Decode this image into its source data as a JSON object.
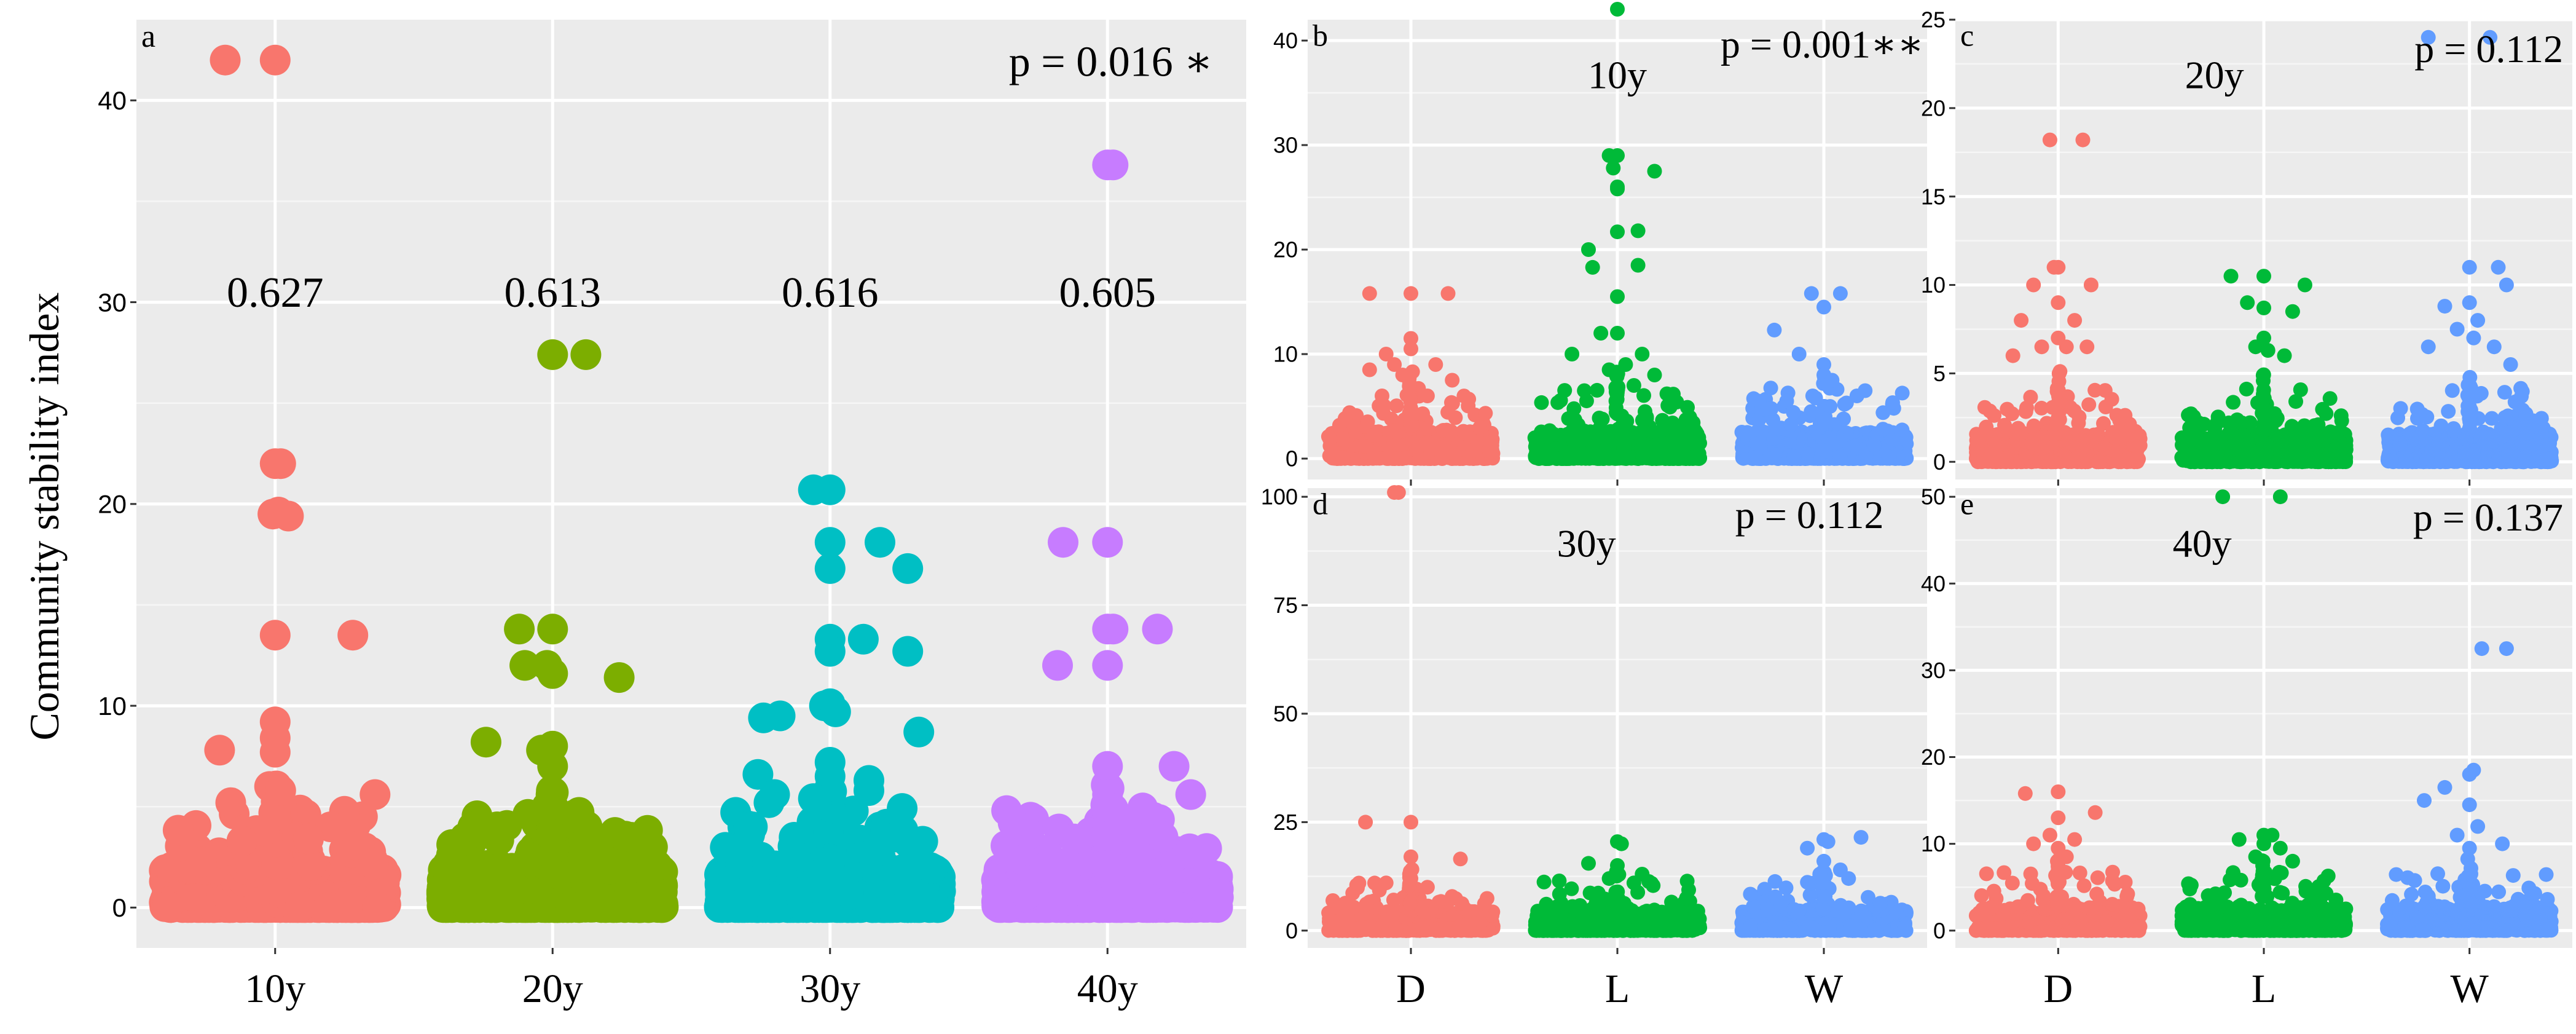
{
  "figure": {
    "ylabel": "Community stability index"
  },
  "chart_data": [
    {
      "id": "a",
      "type": "scatter",
      "title": "",
      "panel_label": "a",
      "p_text": "p = 0.016 ∗",
      "xlabel": "",
      "ylabel": "Community stability index",
      "categories": [
        "10y",
        "20y",
        "30y",
        "40y"
      ],
      "ylim": [
        -2,
        44
      ],
      "yticks": [
        0,
        10,
        20,
        30,
        40
      ],
      "grid": true,
      "colors": [
        "#F8766D",
        "#7CAE00",
        "#00BFC4",
        "#C77CFF"
      ],
      "annotations": [
        "0.627",
        "0.613",
        "0.616",
        "0.605"
      ],
      "annotation_y": 30.5,
      "outliers": [
        [
          [
            -0.45,
            42
          ],
          [
            0,
            42
          ],
          [
            0,
            22
          ],
          [
            0.05,
            22
          ],
          [
            -0.02,
            19.5
          ],
          [
            0.03,
            19.6
          ],
          [
            0.12,
            19.4
          ],
          [
            0.7,
            13.5
          ],
          [
            0,
            13.5
          ],
          [
            0,
            9.2
          ],
          [
            0,
            8.4
          ],
          [
            -0.5,
            7.8
          ],
          [
            0,
            7.7
          ],
          [
            -0.05,
            6
          ],
          [
            0.05,
            5.8
          ],
          [
            -0.4,
            5.2
          ],
          [
            0.9,
            5.6
          ],
          [
            0.5,
            4
          ],
          [
            -0.1,
            3.8
          ],
          [
            0.2,
            3.5
          ],
          [
            0.3,
            3.4
          ],
          [
            -0.3,
            3.3
          ]
        ],
        [
          [
            0,
            27.4
          ],
          [
            0.3,
            27.4
          ],
          [
            -0.3,
            13.8
          ],
          [
            0,
            13.8
          ],
          [
            -0.25,
            12
          ],
          [
            -0.05,
            12
          ],
          [
            0,
            11.6
          ],
          [
            0.6,
            11.4
          ],
          [
            -0.6,
            8.2
          ],
          [
            0,
            8
          ],
          [
            -0.1,
            7.8
          ],
          [
            0,
            7
          ],
          [
            -0.05,
            5
          ],
          [
            0.2,
            4.6
          ],
          [
            0.25,
            4.4
          ],
          [
            -0.7,
            4
          ],
          [
            -0.5,
            4
          ],
          [
            0.9,
            3
          ],
          [
            0.4,
            2.6
          ]
        ],
        [
          [
            0,
            20.7
          ],
          [
            -0.15,
            20.7
          ],
          [
            0,
            18.1
          ],
          [
            0.45,
            18.1
          ],
          [
            0,
            16.8
          ],
          [
            0.7,
            16.8
          ],
          [
            0,
            13.3
          ],
          [
            0.3,
            13.3
          ],
          [
            0,
            12.7
          ],
          [
            0.7,
            12.7
          ],
          [
            0,
            10.1
          ],
          [
            -0.05,
            10
          ],
          [
            0.05,
            9.7
          ],
          [
            -0.45,
            9.5
          ],
          [
            -0.6,
            9.4
          ],
          [
            0,
            7.2
          ],
          [
            0,
            6.5
          ],
          [
            0.8,
            8.7
          ],
          [
            -0.65,
            6.6
          ],
          [
            0.35,
            6.3
          ],
          [
            0.35,
            5.8
          ],
          [
            -0.5,
            5.6
          ],
          [
            -0.55,
            5.2
          ],
          [
            -0.15,
            5.4
          ],
          [
            -0.12,
            5.2
          ],
          [
            -0.7,
            4
          ],
          [
            0.5,
            3.8
          ],
          [
            0.6,
            3.5
          ]
        ],
        [
          [
            0,
            36.8
          ],
          [
            0.05,
            36.8
          ],
          [
            -0.4,
            18.1
          ],
          [
            0,
            18.1
          ],
          [
            0,
            13.8
          ],
          [
            0.05,
            13.8
          ],
          [
            0.45,
            13.8
          ],
          [
            -0.45,
            12
          ],
          [
            0,
            12
          ],
          [
            0,
            7
          ],
          [
            0.6,
            7
          ],
          [
            0,
            5.6
          ],
          [
            0.75,
            5.6
          ],
          [
            0,
            5
          ],
          [
            0.05,
            4.9
          ],
          [
            -0.85,
            4.2
          ],
          [
            -0.3,
            3.4
          ],
          [
            0.5,
            3.5
          ]
        ]
      ]
    },
    {
      "id": "b",
      "type": "scatter",
      "title": "10y",
      "panel_label": "b",
      "p_text": "p = 0.001∗∗",
      "categories": [
        "D",
        "L",
        "W"
      ],
      "ylim": [
        -2,
        42
      ],
      "yticks": [
        0,
        10,
        20,
        30,
        40
      ],
      "grid": true,
      "colors": [
        "#F8766D",
        "#00BA38",
        "#619CFF"
      ],
      "outliers": [
        [
          [
            -0.5,
            15.8
          ],
          [
            0,
            15.8
          ],
          [
            0.45,
            15.8
          ],
          [
            0,
            11.5
          ],
          [
            0,
            10.5
          ],
          [
            -0.3,
            10
          ],
          [
            -0.2,
            9
          ],
          [
            -0.5,
            8.5
          ],
          [
            -0.1,
            8
          ],
          [
            0.3,
            9
          ],
          [
            0.5,
            7.5
          ],
          [
            0.2,
            6
          ],
          [
            -0.35,
            6
          ]
        ],
        [
          [
            0,
            43
          ],
          [
            -0.1,
            29
          ],
          [
            0,
            29
          ],
          [
            0.45,
            27.5
          ],
          [
            -0.05,
            27.8
          ],
          [
            0,
            26
          ],
          [
            0,
            25.8
          ],
          [
            0.25,
            21.8
          ],
          [
            0,
            21.7
          ],
          [
            -0.35,
            20
          ],
          [
            0.25,
            18.5
          ],
          [
            -0.3,
            18.3
          ],
          [
            0,
            15.5
          ],
          [
            -0.2,
            12
          ],
          [
            0,
            12
          ],
          [
            0.3,
            10
          ],
          [
            -0.55,
            10
          ],
          [
            0.1,
            9
          ],
          [
            -0.1,
            8.5
          ],
          [
            0.45,
            8
          ],
          [
            0.2,
            7
          ],
          [
            -0.4,
            6.5
          ],
          [
            0.6,
            6.2
          ]
        ],
        [
          [
            -0.15,
            15.8
          ],
          [
            0.2,
            15.8
          ],
          [
            0,
            14.5
          ],
          [
            -0.6,
            12.3
          ],
          [
            -0.3,
            10
          ],
          [
            0,
            9
          ],
          [
            0,
            8
          ],
          [
            0.1,
            7.5
          ],
          [
            0.4,
            6
          ],
          [
            -0.45,
            5.5
          ],
          [
            0.5,
            6.5
          ],
          [
            -0.1,
            5.8
          ],
          [
            0.25,
            5.2
          ]
        ]
      ]
    },
    {
      "id": "c",
      "type": "scatter",
      "title": "20y",
      "panel_label": "c",
      "p_text": "p = 0.112",
      "categories": [
        "D",
        "L",
        "W"
      ],
      "ylim": [
        -1,
        25
      ],
      "yticks": [
        0,
        5,
        10,
        15,
        20,
        25
      ],
      "grid": true,
      "colors": [
        "#F8766D",
        "#00BA38",
        "#619CFF"
      ],
      "outliers": [
        [
          [
            -0.1,
            18.2
          ],
          [
            0.3,
            18.2
          ],
          [
            -0.05,
            11
          ],
          [
            0,
            11
          ],
          [
            -0.3,
            10
          ],
          [
            0.4,
            10
          ],
          [
            0,
            9
          ],
          [
            0.2,
            8
          ],
          [
            -0.45,
            8
          ],
          [
            0,
            7
          ],
          [
            0.1,
            6.5
          ],
          [
            -0.2,
            6.5
          ],
          [
            0.35,
            6.5
          ],
          [
            -0.55,
            6
          ]
        ],
        [
          [
            -0.4,
            10.5
          ],
          [
            0,
            10.5
          ],
          [
            0.5,
            10
          ],
          [
            -0.2,
            9
          ],
          [
            0,
            8.7
          ],
          [
            0.35,
            8.5
          ],
          [
            0,
            7
          ],
          [
            -0.1,
            6.5
          ],
          [
            0.05,
            6.3
          ],
          [
            0.25,
            6
          ]
        ],
        [
          [
            0.25,
            24
          ],
          [
            -0.5,
            24
          ],
          [
            0,
            11
          ],
          [
            0.35,
            11
          ],
          [
            0.45,
            10
          ],
          [
            0,
            9
          ],
          [
            -0.3,
            8.8
          ],
          [
            0.1,
            8
          ],
          [
            -0.15,
            7.5
          ],
          [
            0.05,
            7
          ],
          [
            0.3,
            6.5
          ],
          [
            -0.5,
            6.5
          ],
          [
            0.5,
            5.5
          ]
        ]
      ]
    },
    {
      "id": "d",
      "type": "scatter",
      "title": "30y",
      "panel_label": "d",
      "p_text": "p = 0.112",
      "categories": [
        "D",
        "L",
        "W"
      ],
      "ylim": [
        -4,
        102
      ],
      "yticks": [
        0,
        25,
        50,
        75,
        100
      ],
      "grid": true,
      "colors": [
        "#F8766D",
        "#00BA38",
        "#619CFF"
      ],
      "outliers": [
        [
          [
            -0.2,
            101
          ],
          [
            -0.15,
            101
          ],
          [
            -0.55,
            25
          ],
          [
            0,
            25
          ],
          [
            0,
            17
          ],
          [
            0.6,
            16.5
          ],
          [
            0,
            12
          ],
          [
            -0.3,
            11
          ],
          [
            0.2,
            10
          ]
        ],
        [
          [
            0,
            20.5
          ],
          [
            0.05,
            20
          ],
          [
            -0.35,
            15.5
          ],
          [
            0,
            15
          ],
          [
            0.3,
            13
          ],
          [
            -0.1,
            12
          ],
          [
            0.2,
            11
          ]
        ],
        [
          [
            0.45,
            21.5
          ],
          [
            0,
            21
          ],
          [
            0.05,
            20.5
          ],
          [
            -0.2,
            19
          ],
          [
            0,
            16
          ],
          [
            0.2,
            14
          ],
          [
            -0.05,
            13
          ],
          [
            0.3,
            12
          ]
        ]
      ]
    },
    {
      "id": "e",
      "type": "scatter",
      "title": "40y",
      "panel_label": "e",
      "p_text": "p = 0.137",
      "categories": [
        "D",
        "L",
        "W"
      ],
      "ylim": [
        -2,
        51
      ],
      "yticks": [
        0,
        10,
        20,
        30,
        40,
        50
      ],
      "grid": true,
      "colors": [
        "#F8766D",
        "#00BA38",
        "#619CFF"
      ],
      "outliers": [
        [
          [
            0,
            16
          ],
          [
            -0.4,
            15.8
          ],
          [
            0.45,
            13.6
          ],
          [
            0,
            13
          ],
          [
            -0.1,
            11
          ],
          [
            0.2,
            10.5
          ],
          [
            -0.3,
            10
          ],
          [
            0,
            9.5
          ],
          [
            0.1,
            8.5
          ]
        ],
        [
          [
            -0.5,
            50
          ],
          [
            0.2,
            50
          ],
          [
            0.1,
            11
          ],
          [
            0,
            11
          ],
          [
            -0.3,
            10.5
          ],
          [
            0,
            10
          ],
          [
            0.2,
            9.5
          ],
          [
            -0.1,
            8.5
          ],
          [
            0.35,
            8
          ]
        ],
        [
          [
            0.15,
            32.5
          ],
          [
            0.45,
            32.5
          ],
          [
            0.05,
            18.5
          ],
          [
            0,
            18
          ],
          [
            -0.3,
            16.5
          ],
          [
            -0.55,
            15
          ],
          [
            0,
            14.5
          ],
          [
            0.1,
            12
          ],
          [
            -0.15,
            11
          ],
          [
            0.4,
            10
          ],
          [
            0,
            9.5
          ]
        ]
      ]
    }
  ]
}
